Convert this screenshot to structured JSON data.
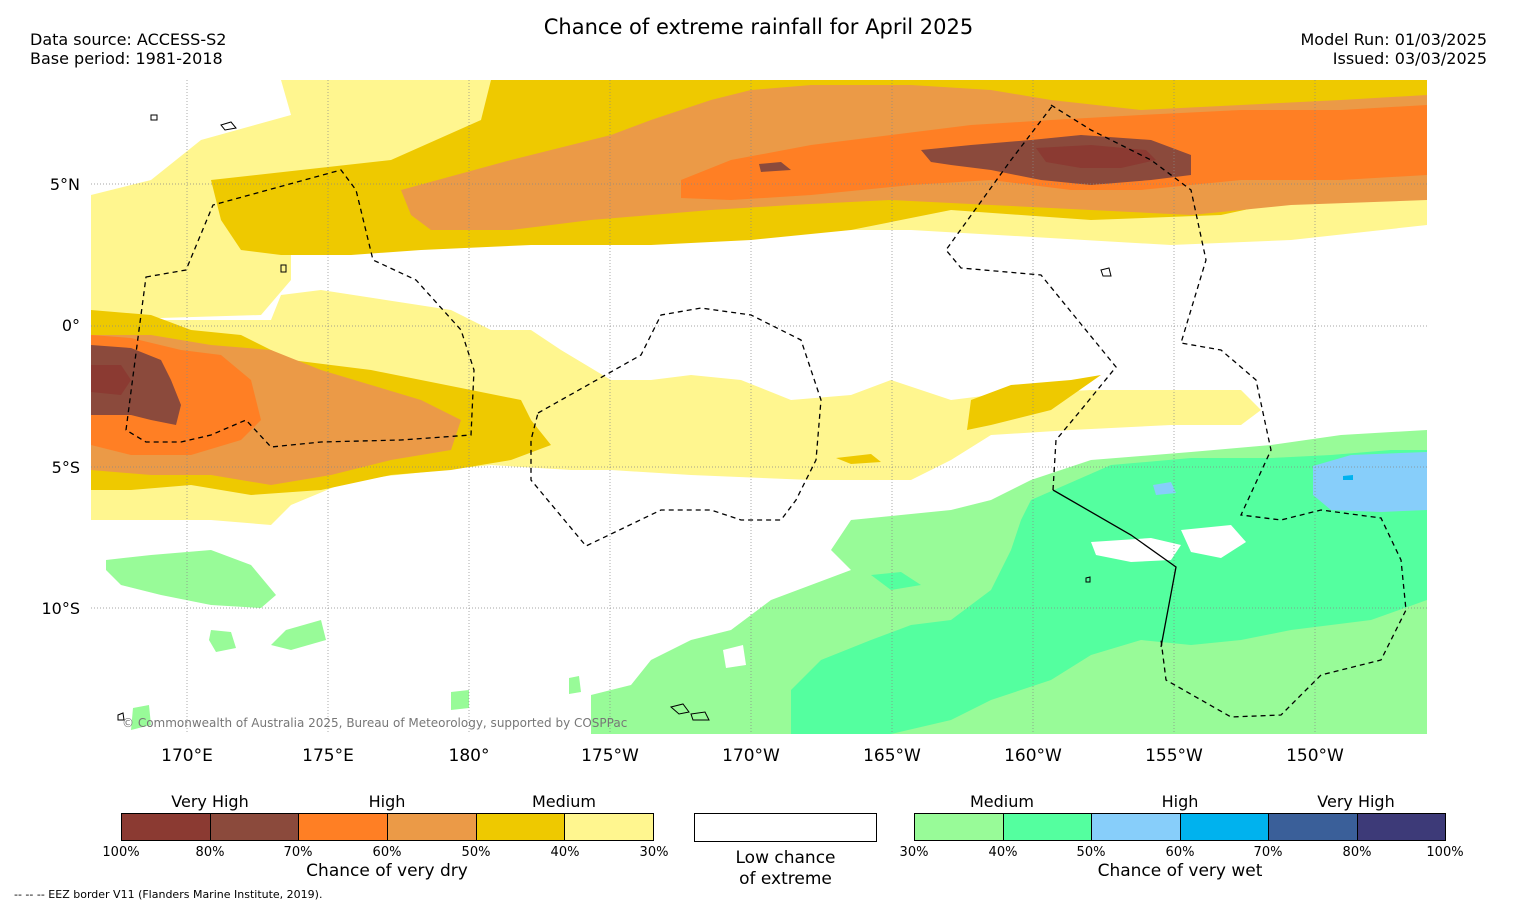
{
  "title": "Chance of extreme rainfall for April 2025",
  "meta": {
    "data_source": "Data source: ACCESS-S2",
    "base_period": "Base period: 1981-2018",
    "model_run": "Model Run: 01/03/2025",
    "issued": "Issued: 03/03/2025"
  },
  "map": {
    "lat_labels": [
      "5°N",
      "0°",
      "5°S",
      "10°S"
    ],
    "lon_labels": [
      "170°E",
      "175°E",
      "180°",
      "175°W",
      "170°W",
      "165°W",
      "160°W",
      "155°W",
      "150°W"
    ],
    "copyright": "© Commonwealth of Australia 2025, Bureau of Meteorology, supported by COSPPac"
  },
  "legend": {
    "dry": {
      "headers": [
        "Very High",
        "High",
        "Medium"
      ],
      "colors": [
        "#8b3a32",
        "#8b4a3c",
        "#ff7f24",
        "#eb9a47",
        "#eec900",
        "#fff68f"
      ],
      "ticks": [
        "100%",
        "80%",
        "70%",
        "60%",
        "50%",
        "40%",
        "30%"
      ],
      "caption": "Chance of very dry"
    },
    "low": {
      "caption_line1": "Low chance",
      "caption_line2": "of extreme"
    },
    "wet": {
      "headers": [
        "Medium",
        "High",
        "Very High"
      ],
      "colors": [
        "#98fb98",
        "#54ff9f",
        "#87cefa",
        "#00b2ee",
        "#3a5f99",
        "#3d3a78"
      ],
      "ticks": [
        "30%",
        "40%",
        "50%",
        "60%",
        "70%",
        "80%",
        "100%"
      ],
      "caption": "Chance of very wet"
    }
  },
  "eez_note": "-- -- -- EEZ border V11 (Flanders Marine Institute, 2019)."
}
